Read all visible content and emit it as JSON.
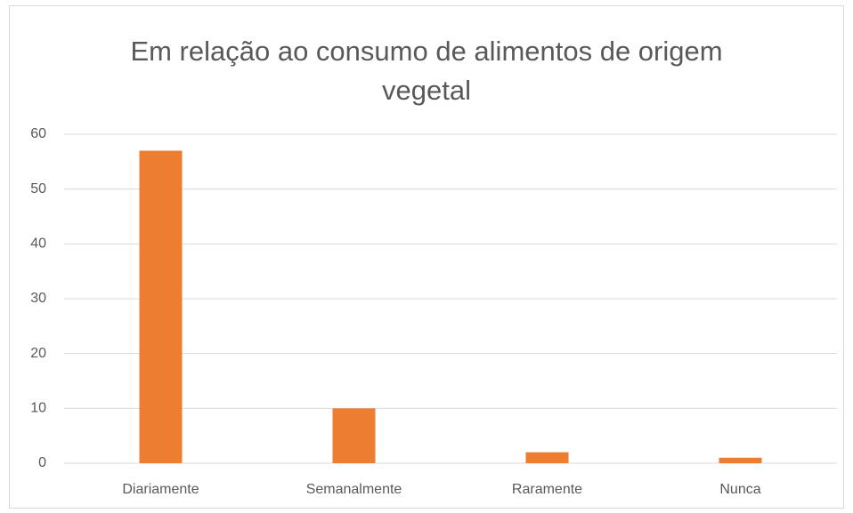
{
  "chart_data": {
    "type": "bar",
    "title": "Em relação ao consumo de alimentos de origem vegetal",
    "categories": [
      "Diariamente",
      "Semanalmente",
      "Raramente",
      "Nunca"
    ],
    "values": [
      57,
      10,
      2,
      1
    ],
    "color": "#ed7d31",
    "ylim": [
      0,
      60
    ],
    "yticks": [
      0,
      10,
      20,
      30,
      40,
      50,
      60
    ],
    "grid": true
  }
}
